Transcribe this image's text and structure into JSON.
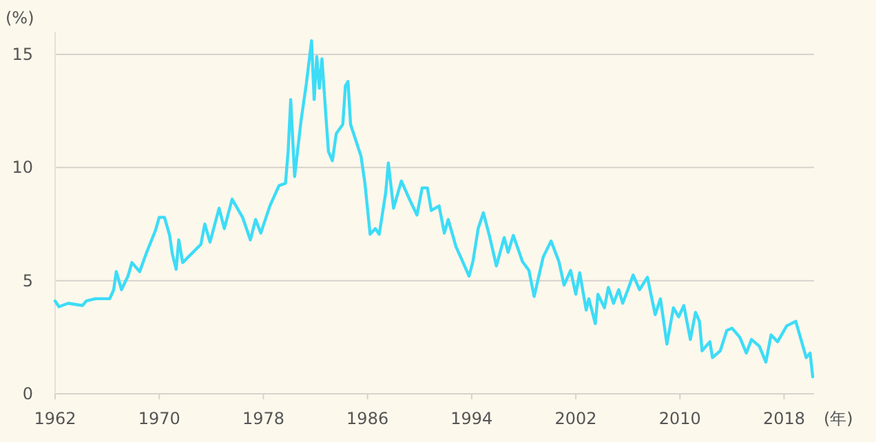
{
  "chart_data": {
    "type": "line",
    "ylabel": "(%)",
    "xlabel": "(年)",
    "xlim": [
      1962,
      2020.3
    ],
    "ylim": [
      0,
      16
    ],
    "xticks": [
      1962,
      1970,
      1978,
      1986,
      1994,
      2002,
      2010,
      2018
    ],
    "yticks": [
      0,
      5,
      10,
      15
    ],
    "grid": "y",
    "marker": "none",
    "line_style": "solid",
    "series": [
      {
        "color": "#3ddcf7",
        "x": [
          1962.0,
          1962.3,
          1963.0,
          1964.1,
          1964.4,
          1965.1,
          1966.2,
          1966.5,
          1966.7,
          1967.1,
          1967.6,
          1967.9,
          1968.5,
          1969.0,
          1969.7,
          1970.0,
          1970.4,
          1970.8,
          1971.0,
          1971.3,
          1971.5,
          1971.8,
          1972.5,
          1973.2,
          1973.5,
          1973.9,
          1974.6,
          1975.0,
          1975.6,
          1976.4,
          1977.0,
          1977.4,
          1977.8,
          1978.5,
          1979.2,
          1979.7,
          1979.9,
          1980.1,
          1980.4,
          1980.9,
          1981.3,
          1981.7,
          1981.9,
          1982.1,
          1982.3,
          1982.5,
          1982.8,
          1983.0,
          1983.3,
          1983.6,
          1984.1,
          1984.3,
          1984.5,
          1984.7,
          1985.1,
          1985.5,
          1985.8,
          1986.2,
          1986.6,
          1986.9,
          1987.4,
          1987.6,
          1988.0,
          1988.6,
          1989.3,
          1989.8,
          1990.2,
          1990.6,
          1990.9,
          1991.5,
          1991.9,
          1992.2,
          1992.8,
          1993.3,
          1993.8,
          1994.1,
          1994.5,
          1994.9,
          1995.4,
          1995.9,
          1996.5,
          1996.8,
          1997.2,
          1997.9,
          1998.4,
          1998.8,
          1999.5,
          2000.1,
          2000.7,
          2001.1,
          2001.6,
          2002.0,
          2002.3,
          2002.8,
          2003.0,
          2003.5,
          2003.7,
          2004.2,
          2004.5,
          2004.9,
          2005.3,
          2005.6,
          2006.0,
          2006.4,
          2006.9,
          2007.5,
          2008.1,
          2008.5,
          2009.0,
          2009.5,
          2009.9,
          2010.3,
          2010.8,
          2011.2,
          2011.5,
          2011.7,
          2012.3,
          2012.5,
          2013.1,
          2013.6,
          2014.0,
          2014.6,
          2015.1,
          2015.5,
          2016.1,
          2016.6,
          2017.0,
          2017.5,
          2018.2,
          2018.9,
          2019.3,
          2019.7,
          2020.0,
          2020.2
        ],
        "values": [
          4.1,
          3.85,
          4.0,
          3.9,
          4.1,
          4.2,
          4.2,
          4.6,
          5.4,
          4.6,
          5.2,
          5.8,
          5.4,
          6.2,
          7.2,
          7.8,
          7.8,
          7.0,
          6.2,
          5.5,
          6.8,
          5.8,
          6.2,
          6.6,
          7.5,
          6.7,
          8.2,
          7.3,
          8.6,
          7.8,
          6.8,
          7.7,
          7.1,
          8.3,
          9.2,
          9.3,
          10.7,
          13.0,
          9.6,
          12.1,
          13.7,
          15.6,
          13.0,
          14.9,
          13.5,
          14.8,
          12.3,
          10.7,
          10.3,
          11.5,
          11.9,
          13.6,
          13.8,
          11.9,
          11.2,
          10.5,
          9.3,
          7.05,
          7.3,
          7.05,
          8.9,
          10.2,
          8.2,
          9.4,
          8.5,
          7.9,
          9.1,
          9.1,
          8.1,
          8.3,
          7.1,
          7.7,
          6.5,
          5.85,
          5.2,
          5.85,
          7.3,
          8.0,
          6.9,
          5.65,
          6.9,
          6.25,
          7.0,
          5.85,
          5.45,
          4.3,
          6.05,
          6.75,
          5.85,
          4.8,
          5.45,
          4.4,
          5.35,
          3.7,
          4.2,
          3.1,
          4.4,
          3.8,
          4.7,
          4.0,
          4.6,
          4.0,
          4.6,
          5.25,
          4.6,
          5.15,
          3.5,
          4.2,
          2.2,
          3.8,
          3.4,
          3.9,
          2.4,
          3.6,
          3.2,
          1.9,
          2.3,
          1.6,
          1.9,
          2.8,
          2.9,
          2.5,
          1.8,
          2.4,
          2.1,
          1.4,
          2.6,
          2.3,
          3.0,
          3.2,
          2.4,
          1.6,
          1.8,
          0.75
        ]
      }
    ]
  }
}
